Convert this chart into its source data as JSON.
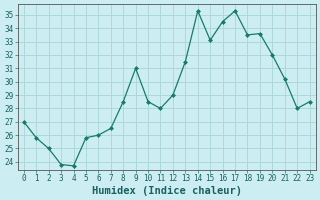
{
  "x": [
    0,
    1,
    2,
    3,
    4,
    5,
    6,
    7,
    8,
    9,
    10,
    11,
    12,
    13,
    14,
    15,
    16,
    17,
    18,
    19,
    20,
    21,
    22,
    23
  ],
  "y": [
    27.0,
    25.8,
    25.0,
    23.8,
    23.7,
    25.8,
    26.0,
    26.5,
    28.5,
    31.0,
    28.5,
    28.0,
    29.0,
    31.5,
    35.3,
    33.1,
    34.5,
    35.3,
    33.5,
    33.6,
    32.0,
    30.2,
    28.0,
    28.5
  ],
  "line_color": "#1a7a6a",
  "marker": "D",
  "marker_size": 2.0,
  "bg_color": "#cceef2",
  "grid_color": "#aad4d8",
  "xlabel": "Humidex (Indice chaleur)",
  "ylim": [
    23.4,
    35.8
  ],
  "yticks": [
    24,
    25,
    26,
    27,
    28,
    29,
    30,
    31,
    32,
    33,
    34,
    35
  ],
  "xticks": [
    0,
    1,
    2,
    3,
    4,
    5,
    6,
    7,
    8,
    9,
    10,
    11,
    12,
    13,
    14,
    15,
    16,
    17,
    18,
    19,
    20,
    21,
    22,
    23
  ],
  "tick_fontsize": 5.5,
  "xlabel_fontsize": 7.5,
  "linewidth": 0.9
}
